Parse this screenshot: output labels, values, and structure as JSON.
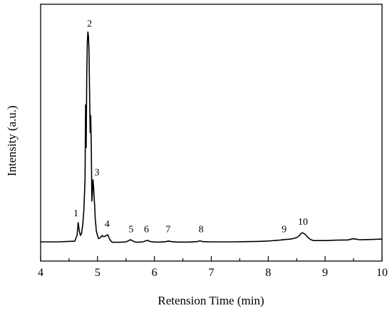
{
  "chart_data": {
    "type": "line",
    "title": "",
    "xlabel": "Retension Time (min)",
    "ylabel": "Intensity (a.u.)",
    "xlim": [
      4,
      10
    ],
    "ylim": [
      0,
      100
    ],
    "xticks": [
      4,
      5,
      6,
      7,
      8,
      9,
      10
    ],
    "yticks_visible": false,
    "grid": false,
    "legend": "none",
    "series": [
      {
        "color": "#000000",
        "x": [
          4.0,
          4.3,
          4.6,
          4.64,
          4.66,
          4.68,
          4.7,
          4.72,
          4.74,
          4.76,
          4.78,
          4.79,
          4.8,
          4.81,
          4.82,
          4.83,
          4.84,
          4.85,
          4.86,
          4.87,
          4.88,
          4.89,
          4.9,
          4.91,
          4.92,
          4.93,
          4.94,
          4.95,
          4.96,
          4.98,
          5.0,
          5.02,
          5.05,
          5.08,
          5.1,
          5.13,
          5.15,
          5.18,
          5.2,
          5.23,
          5.26,
          5.3,
          5.4,
          5.5,
          5.55,
          5.58,
          5.61,
          5.65,
          5.7,
          5.8,
          5.85,
          5.88,
          5.92,
          6.0,
          6.1,
          6.2,
          6.25,
          6.3,
          6.4,
          6.6,
          6.75,
          6.8,
          6.85,
          7.0,
          7.2,
          7.4,
          7.6,
          7.8,
          8.0,
          8.2,
          8.3,
          8.4,
          8.5,
          8.55,
          8.58,
          8.6,
          8.62,
          8.65,
          8.7,
          8.75,
          8.8,
          8.9,
          9.0,
          9.2,
          9.4,
          9.48,
          9.52,
          9.6,
          9.8,
          10.0
        ],
        "y": [
          1,
          1,
          1.3,
          4,
          10,
          6,
          4,
          5,
          9,
          16,
          30,
          65,
          45,
          78,
          94,
          99,
          97,
          90,
          70,
          52,
          60,
          45,
          20,
          24,
          30,
          27,
          22,
          18,
          12,
          6,
          4,
          2.5,
          3,
          4,
          3.5,
          3.5,
          4,
          4.3,
          3,
          1.5,
          0.8,
          0.8,
          0.8,
          1,
          1.6,
          2,
          1.6,
          1,
          0.8,
          1,
          1.5,
          1.7,
          1.2,
          0.9,
          0.9,
          1.1,
          1.4,
          1.1,
          0.9,
          0.9,
          1.1,
          1.5,
          1.1,
          1,
          1,
          1,
          1.1,
          1.2,
          1.4,
          1.8,
          2.1,
          2.3,
          3,
          4,
          5,
          5.2,
          5,
          4.5,
          3,
          2,
          1.6,
          1.6,
          1.6,
          1.8,
          1.9,
          2.4,
          2.4,
          2,
          2.1,
          2.3
        ]
      }
    ],
    "annotations": [
      {
        "text": "1",
        "x": 4.62,
        "y": 13
      },
      {
        "text": "2",
        "x": 4.86,
        "y": 101.5
      },
      {
        "text": "3",
        "x": 4.99,
        "y": 32
      },
      {
        "text": "4",
        "x": 5.17,
        "y": 8
      },
      {
        "text": "5",
        "x": 5.59,
        "y": 5.5
      },
      {
        "text": "6",
        "x": 5.86,
        "y": 5.5
      },
      {
        "text": "7",
        "x": 6.24,
        "y": 5.5
      },
      {
        "text": "8",
        "x": 6.82,
        "y": 5.5
      },
      {
        "text": "9",
        "x": 8.28,
        "y": 5.5
      },
      {
        "text": "10",
        "x": 8.61,
        "y": 9
      }
    ]
  }
}
